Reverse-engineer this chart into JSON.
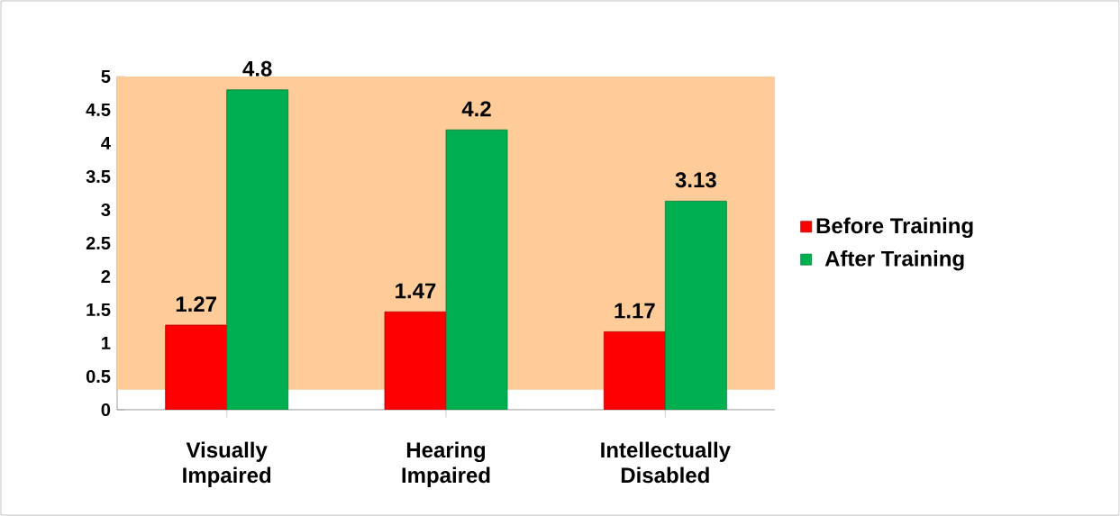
{
  "chart_data": {
    "type": "bar",
    "categories": [
      "Visually Impaired",
      "Hearing Impaired",
      "Intellectually Disabled"
    ],
    "series": [
      {
        "name": "Before Training",
        "color": "#ff0000",
        "values": [
          1.27,
          1.47,
          1.17
        ]
      },
      {
        "name": "After Training",
        "color": "#00b050",
        "values": [
          4.8,
          4.2,
          3.13
        ]
      }
    ],
    "ylim": [
      0,
      5
    ],
    "yticks": [
      0,
      0.5,
      1,
      1.5,
      2,
      2.5,
      3,
      3.5,
      4,
      4.5,
      5
    ],
    "data_labels": true,
    "legend": "right",
    "grid": false
  }
}
